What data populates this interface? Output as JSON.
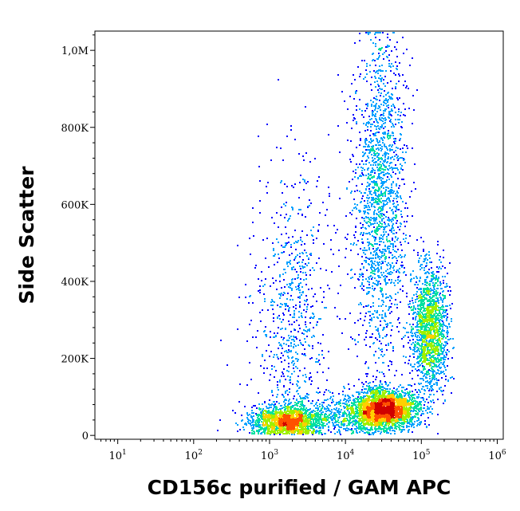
{
  "chart_data": {
    "type": "scatter",
    "xlabel": "CD156c purified / GAM APC",
    "ylabel": "Side Scatter",
    "x_scale": "log",
    "xlim": [
      5,
      1200000
    ],
    "ylim": [
      -10000,
      1050000
    ],
    "x_ticks": [
      {
        "value": 10,
        "base": "10",
        "exp": "1"
      },
      {
        "value": 100,
        "base": "10",
        "exp": "2"
      },
      {
        "value": 1000,
        "base": "10",
        "exp": "3"
      },
      {
        "value": 10000,
        "base": "10",
        "exp": "4"
      },
      {
        "value": 100000,
        "base": "10",
        "exp": "5"
      },
      {
        "value": 1000000,
        "base": "10",
        "exp": "6"
      }
    ],
    "y_ticks": [
      {
        "value": 0,
        "label": "0"
      },
      {
        "value": 200000,
        "label": "200K"
      },
      {
        "value": 400000,
        "label": "400K"
      },
      {
        "value": 600000,
        "label": "600K"
      },
      {
        "value": 800000,
        "label": "800K"
      },
      {
        "value": 1000000,
        "label": "1,0M"
      }
    ],
    "grid": false,
    "density_colormap": [
      "#0000ff",
      "#00a0ff",
      "#00e0a0",
      "#a0f000",
      "#ffd000",
      "#ff5000",
      "#d00000"
    ],
    "populations": [
      {
        "x_log_center": 4.5,
        "x_log_spread": 0.22,
        "y_center": 70000,
        "y_spread": 25000,
        "weight": 0.3
      },
      {
        "x_log_center": 5.1,
        "x_log_spread": 0.12,
        "y_center": 280000,
        "y_spread": 80000,
        "weight": 0.18
      },
      {
        "x_log_center": 4.45,
        "x_log_spread": 0.18,
        "y_center": 620000,
        "y_spread": 230000,
        "weight": 0.2
      },
      {
        "x_log_center": 3.2,
        "x_log_spread": 0.22,
        "y_center": 40000,
        "y_spread": 20000,
        "weight": 0.17
      },
      {
        "x_log_center": 3.3,
        "x_log_spread": 0.25,
        "y_center": 300000,
        "y_spread": 200000,
        "weight": 0.09
      },
      {
        "x_log_center": 3.9,
        "x_log_spread": 0.35,
        "y_center": 50000,
        "y_spread": 25000,
        "weight": 0.06
      }
    ]
  }
}
